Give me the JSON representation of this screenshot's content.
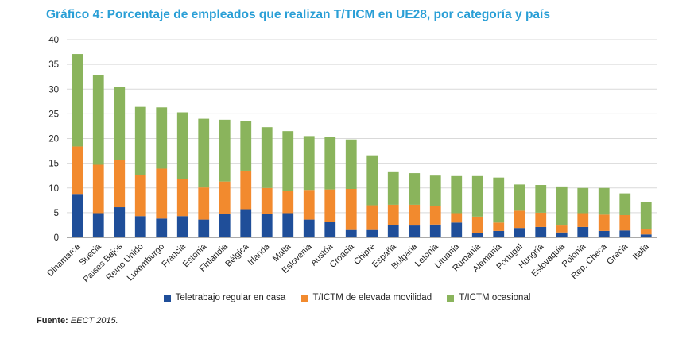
{
  "title": "Gráfico 4: Porcentaje de empleados que realizan T/TICM en UE28, por categoría y país",
  "source": {
    "label": "Fuente:",
    "text": "EECT 2015."
  },
  "colors": {
    "s0": "#1f4e99",
    "s1": "#f28a2e",
    "s2": "#8ab45c",
    "grid": "#d9d9d9",
    "axis": "#555555"
  },
  "chart_data": {
    "type": "bar",
    "stacked": true,
    "ylim": [
      0,
      40
    ],
    "yticks": [
      0,
      5,
      10,
      15,
      20,
      25,
      30,
      35,
      40
    ],
    "legend_position": "bottom",
    "categories": [
      "Dinamarca",
      "Suecia",
      "Países Bajos",
      "Reino Unido",
      "Luxemburgo",
      "Francia",
      "Estonia",
      "Finlandia",
      "Bélgica",
      "Irlanda",
      "Malta",
      "Eslovenia",
      "Austria",
      "Croacia",
      "Chipre",
      "España",
      "Bulgaria",
      "Letonia",
      "Lituania",
      "Rumania",
      "Alemania",
      "Portugal",
      "Hungría",
      "Eslovaquia",
      "Polonia",
      "Rep. Checa",
      "Grecia",
      "Italia"
    ],
    "series": [
      {
        "name": "Teletrabajo regular en casa",
        "values": [
          8.8,
          4.9,
          6.1,
          4.3,
          3.8,
          4.3,
          3.6,
          4.7,
          5.7,
          4.8,
          4.9,
          3.6,
          3.1,
          1.5,
          1.5,
          2.5,
          2.4,
          2.6,
          3.0,
          0.9,
          1.3,
          1.9,
          2.1,
          1.0,
          2.1,
          1.3,
          1.4,
          0.6
        ]
      },
      {
        "name": "T/ICTM de elevada movilidad",
        "values": [
          9.6,
          9.8,
          9.5,
          8.3,
          10.1,
          7.5,
          6.5,
          6.6,
          7.8,
          5.2,
          4.5,
          6.0,
          6.6,
          8.3,
          5.0,
          4.1,
          4.2,
          3.8,
          1.9,
          3.3,
          1.7,
          3.5,
          2.9,
          1.4,
          2.8,
          3.3,
          3.1,
          1.0
        ]
      },
      {
        "name": "T/ICTM ocasional",
        "values": [
          18.7,
          18.1,
          14.8,
          13.8,
          12.4,
          13.5,
          13.9,
          12.5,
          10.0,
          12.3,
          12.1,
          10.9,
          10.6,
          10.0,
          10.1,
          6.6,
          6.4,
          6.1,
          7.5,
          8.2,
          9.1,
          5.3,
          5.6,
          7.9,
          5.1,
          5.4,
          4.4,
          5.5
        ]
      }
    ]
  }
}
